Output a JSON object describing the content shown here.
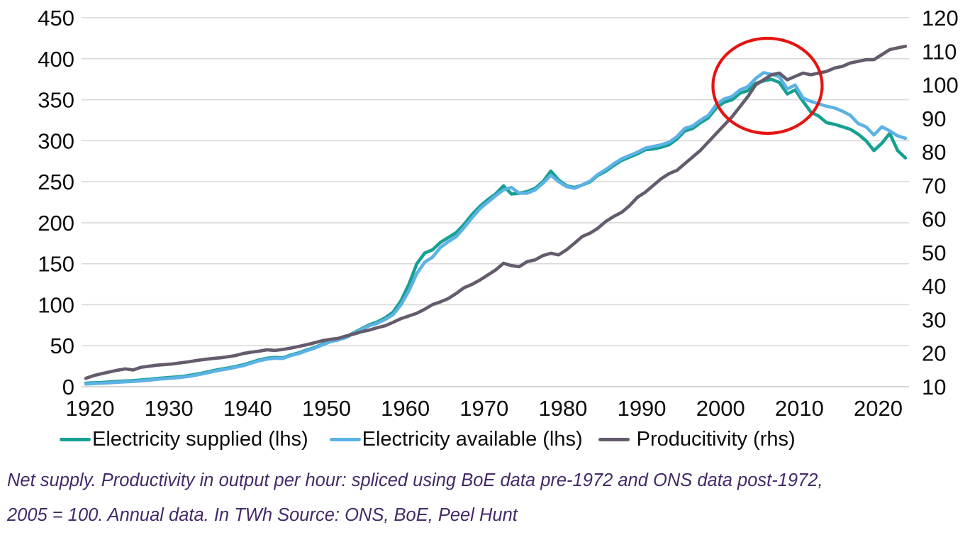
{
  "chart_data": {
    "type": "line",
    "title": "",
    "xlabel": "",
    "ylabel_left": "",
    "ylabel_right": "",
    "grid": "horizontal",
    "legend_position": "bottom",
    "x_ticks": [
      1920,
      1930,
      1940,
      1950,
      1960,
      1970,
      1980,
      1990,
      2000,
      2010,
      2020
    ],
    "left_axis": {
      "min": 0,
      "max": 450,
      "step": 50,
      "ticks": [
        450,
        400,
        350,
        300,
        250,
        200,
        150,
        100,
        50,
        0
      ]
    },
    "right_axis": {
      "min": 10,
      "max": 120,
      "step": 10,
      "ticks": [
        120,
        110,
        100,
        90,
        80,
        70,
        60,
        50,
        40,
        30,
        20,
        10
      ]
    },
    "x": [
      1920,
      1921,
      1922,
      1923,
      1924,
      1925,
      1926,
      1927,
      1928,
      1929,
      1930,
      1931,
      1932,
      1933,
      1934,
      1935,
      1936,
      1937,
      1938,
      1939,
      1940,
      1941,
      1942,
      1943,
      1944,
      1945,
      1946,
      1947,
      1948,
      1949,
      1950,
      1951,
      1952,
      1953,
      1954,
      1955,
      1956,
      1957,
      1958,
      1959,
      1960,
      1961,
      1962,
      1963,
      1964,
      1965,
      1966,
      1967,
      1968,
      1969,
      1970,
      1971,
      1972,
      1973,
      1974,
      1975,
      1976,
      1977,
      1978,
      1979,
      1980,
      1981,
      1982,
      1983,
      1984,
      1985,
      1986,
      1987,
      1988,
      1989,
      1990,
      1991,
      1992,
      1993,
      1994,
      1995,
      1996,
      1997,
      1998,
      1999,
      2000,
      2001,
      2002,
      2003,
      2004,
      2005,
      2006,
      2007,
      2008,
      2009,
      2010,
      2011,
      2012,
      2013,
      2014,
      2015,
      2016,
      2017,
      2018,
      2019,
      2020,
      2021,
      2022,
      2023,
      2024
    ],
    "series": [
      {
        "name": "Electricity supplied (lhs)",
        "axis": "left",
        "color": "#17a091",
        "values": [
          4.3,
          4.8,
          5.2,
          5.8,
          6.4,
          7,
          7.4,
          8.2,
          9,
          10,
          10.8,
          11.5,
          12.3,
          13.5,
          15.2,
          17,
          19.2,
          21.2,
          22.7,
          24.7,
          26.7,
          29.7,
          32.7,
          34.7,
          35.7,
          35.2,
          38.7,
          41.2,
          44.7,
          47.7,
          51.7,
          55.7,
          57.7,
          60.7,
          65.7,
          70.7,
          75.7,
          79,
          84,
          91,
          105,
          125,
          150,
          163,
          167,
          176,
          182,
          188,
          198,
          210,
          220,
          228,
          235,
          245,
          235,
          236,
          238,
          242,
          250,
          263,
          252,
          245,
          243,
          246,
          250,
          258,
          263,
          270,
          276,
          280,
          284,
          289,
          290,
          292,
          295,
          302,
          312,
          315,
          322,
          328,
          340,
          347,
          350,
          358,
          361,
          370,
          373,
          375,
          371,
          357,
          362,
          348,
          335,
          330,
          322,
          320,
          317,
          314,
          308,
          300,
          288,
          297,
          309,
          288,
          279
        ]
      },
      {
        "name": "Electricity available (lhs)",
        "axis": "left",
        "color": "#5cb2e5",
        "values": [
          3.3,
          3.8,
          4.2,
          4.8,
          5.4,
          6,
          6.4,
          7.2,
          8,
          9,
          9.8,
          10.5,
          11.3,
          12.5,
          14.2,
          16,
          18.2,
          20.2,
          21.7,
          23.7,
          25.7,
          28.7,
          31.7,
          33.7,
          34.7,
          34.4,
          37.9,
          40.4,
          43.9,
          46.9,
          50.9,
          54.9,
          56.9,
          59.9,
          64.9,
          69.9,
          74.5,
          77.5,
          82,
          88,
          100,
          117,
          138,
          152,
          158,
          170,
          177,
          183,
          194,
          206,
          217,
          225,
          233,
          240,
          243,
          236,
          236,
          240,
          248,
          258,
          250,
          244,
          242,
          246,
          251,
          259,
          265,
          272,
          278,
          282,
          286,
          291,
          293,
          295,
          298,
          305,
          315,
          318,
          325,
          331,
          344,
          351,
          354,
          362,
          366,
          376,
          383,
          381,
          378,
          363,
          368,
          352,
          348,
          345,
          342,
          340,
          336,
          331,
          321,
          317,
          307,
          317,
          312,
          306,
          303
        ]
      },
      {
        "name": "Producitivity (rhs)",
        "axis": "right",
        "color": "#645b6c",
        "values": [
          12.5,
          13.3,
          13.9,
          14.4,
          14.9,
          15.3,
          15,
          15.8,
          16.1,
          16.4,
          16.6,
          16.8,
          17.1,
          17.4,
          17.8,
          18.1,
          18.4,
          18.6,
          18.9,
          19.3,
          19.9,
          20.3,
          20.6,
          21,
          20.8,
          21.1,
          21.5,
          22,
          22.5,
          23.1,
          23.7,
          24.1,
          24.4,
          25.1,
          25.7,
          26.4,
          26.9,
          27.6,
          28.2,
          29.2,
          30.3,
          31.1,
          31.9,
          33.1,
          34.5,
          35.3,
          36.3,
          37.8,
          39.5,
          40.5,
          41.8,
          43.3,
          44.8,
          46.8,
          46.1,
          45.8,
          47.3,
          47.8,
          49.1,
          49.8,
          49.3,
          50.8,
          52.8,
          54.8,
          55.8,
          57.3,
          59.3,
          60.8,
          62,
          64,
          66.5,
          68,
          70,
          72,
          73.5,
          74.5,
          76.5,
          78.5,
          80.5,
          83,
          85.5,
          88,
          90.5,
          93.5,
          96.5,
          100,
          101.5,
          103,
          103.5,
          101.5,
          102.5,
          103.5,
          103,
          103.5,
          104,
          105,
          105.5,
          106.5,
          107,
          107.5,
          107.5,
          109,
          110.5,
          111,
          111.5
        ]
      }
    ],
    "annotation": {
      "shape": "ellipse",
      "color": "#e51410",
      "center_year": 2006.5,
      "center_right_axis_value": 99.7,
      "radius_x_px": 77,
      "radius_y_px": 67,
      "meaning": "highlights peak of electricity supply and productivity around mid-2000s"
    }
  },
  "legend": {
    "items": [
      {
        "label": "Electricity supplied (lhs)",
        "color": "#17a091"
      },
      {
        "label": "Electricity available (lhs)",
        "color": "#5cb2e5"
      },
      {
        "label": "Producitivity (rhs)",
        "color": "#645b6c"
      }
    ]
  },
  "caption": {
    "line1": "Net supply. Productivity in output per hour: spliced using BoE data pre-1972 and ONS data post-1972,",
    "line2": "2005 = 100. Annual data. In TWh Source: ONS, BoE, Peel Hunt"
  },
  "colors": {
    "gridline": "#d9d9d9",
    "baseline": "#c9c9c9",
    "axis_text": "#0d0d0d",
    "caption_text": "#452a68",
    "annotation_red": "#e51410"
  }
}
